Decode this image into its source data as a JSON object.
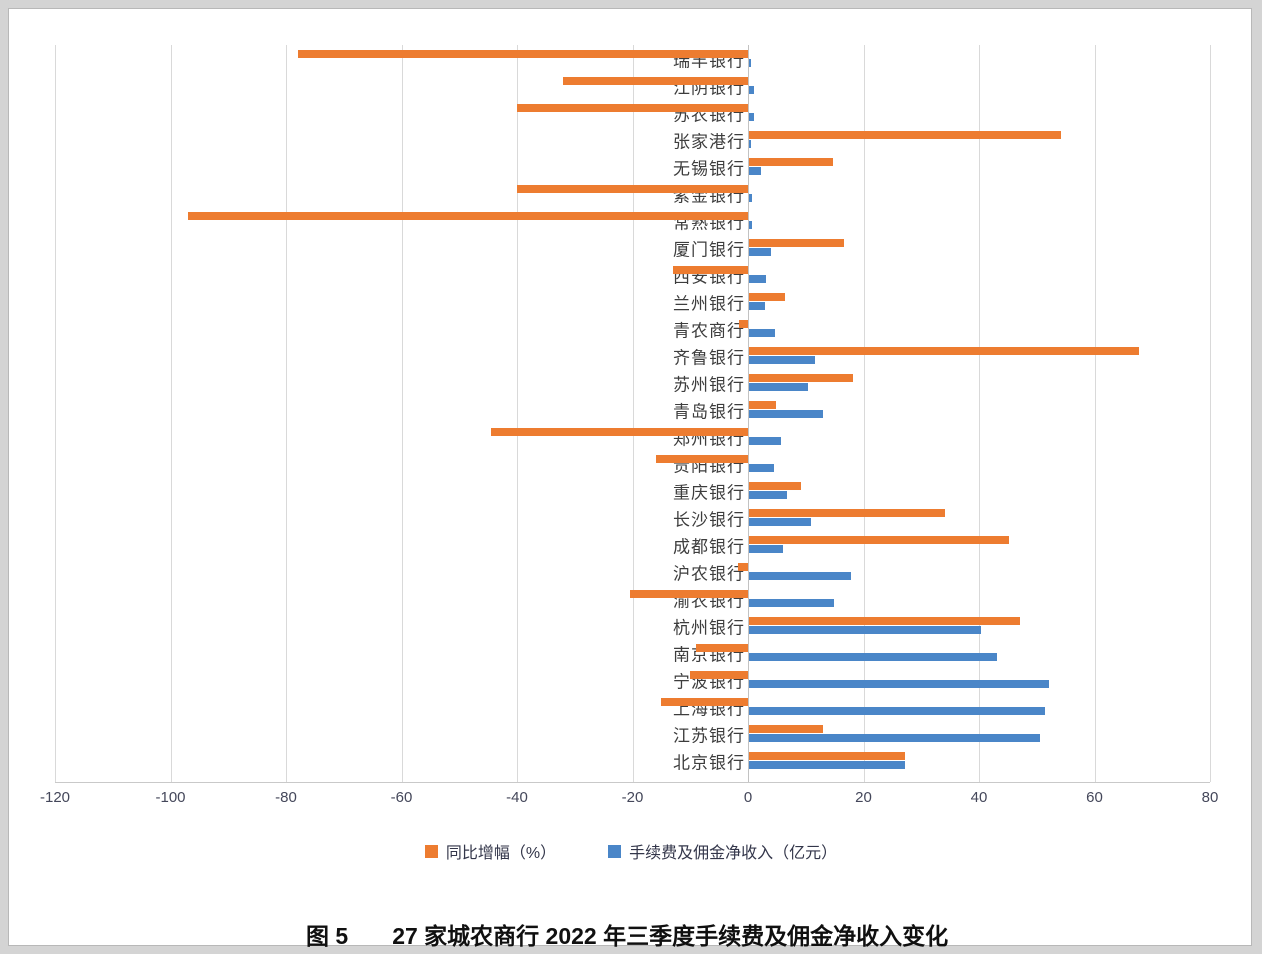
{
  "legend": [
    {
      "name": "growth",
      "label": "同比增幅（%）",
      "color": "#ED7C30"
    },
    {
      "name": "income",
      "label": "手续费及佣金净收入（亿元）",
      "color": "#4A86C8"
    }
  ],
  "caption": {
    "figure_label": "图 5",
    "title": "27 家城农商行 2022 年三季度手续费及佣金净收入变化"
  },
  "colors": {
    "growth_bar": "#ED7C30",
    "income_bar": "#4A86C8",
    "gridline": "#d9d9d9",
    "background": "#ffffff",
    "page_background": "#d4d4d4"
  },
  "chart_data": {
    "type": "bar",
    "orientation": "horizontal",
    "title": "27 家城农商行 2022 年三季度手续费及佣金净收入变化",
    "xlabel": "",
    "ylabel": "",
    "xlim": [
      -120,
      80
    ],
    "xticks": [
      -120,
      -100,
      -80,
      -60,
      -40,
      -20,
      0,
      20,
      40,
      60,
      80
    ],
    "grid": true,
    "legend_position": "bottom",
    "categories": [
      "瑞丰银行",
      "江阴银行",
      "苏农银行",
      "张家港行",
      "无锡银行",
      "紫金银行",
      "常熟银行",
      "厦门银行",
      "西安银行",
      "兰州银行",
      "青农商行",
      "齐鲁银行",
      "苏州银行",
      "青岛银行",
      "郑州银行",
      "贵阳银行",
      "重庆银行",
      "长沙银行",
      "成都银行",
      "沪农银行",
      "渝农银行",
      "杭州银行",
      "南京银行",
      "宁波银行",
      "上海银行",
      "江苏银行",
      "北京银行"
    ],
    "series": [
      {
        "name": "同比增幅（%）",
        "color": "#ED7C30",
        "values": [
          -78,
          -32,
          -40,
          54,
          14.5,
          -40,
          -97,
          16.5,
          -13,
          6.3,
          -1.5,
          67.5,
          18,
          4.6,
          -44.5,
          -16,
          9,
          34,
          45,
          -1.8,
          -20.5,
          47,
          -9,
          -10,
          -15,
          12.8,
          27
        ]
      },
      {
        "name": "手续费及佣金净收入（亿元）",
        "color": "#4A86C8",
        "values": [
          0.3,
          0.8,
          0.9,
          0.3,
          2.0,
          0.5,
          0.5,
          3.8,
          3.0,
          2.7,
          4.5,
          11.5,
          10.3,
          12.8,
          5.6,
          4.3,
          6.6,
          10.7,
          5.9,
          17.7,
          14.8,
          40.2,
          43,
          52,
          51.2,
          50.4,
          27
        ]
      }
    ]
  }
}
